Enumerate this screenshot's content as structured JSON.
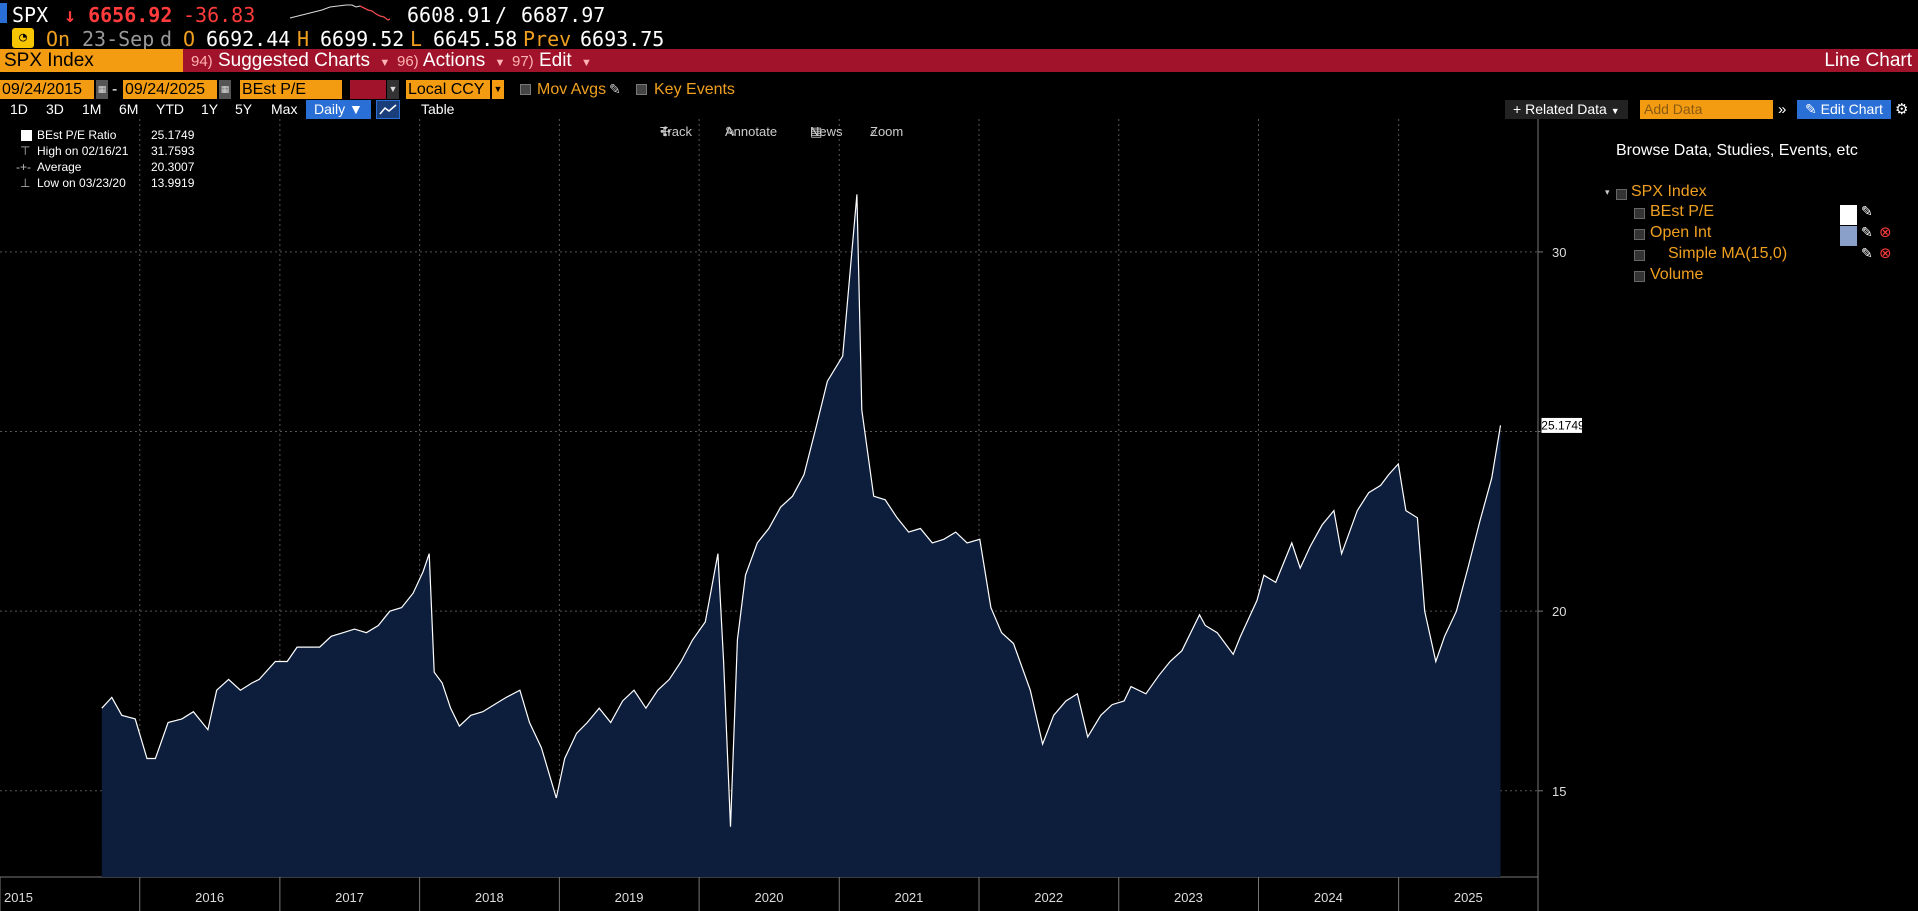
{
  "quote": {
    "ticker": "SPX",
    "arrow": "↓",
    "last": "6656.92",
    "change": "-36.83",
    "bid": "6608.91",
    "sep": "/",
    "ask": "6687.97"
  },
  "ohlc": {
    "on_label": "On",
    "date": "23-Sep",
    "d_label": "d",
    "open_label": "O",
    "open": "6692.44",
    "high_label": "H",
    "high": "6699.52",
    "low_label": "L",
    "low": "6645.58",
    "prev_label": "Prev",
    "prev": "6693.75"
  },
  "menubar": {
    "security": "SPX Index",
    "suggested_num": "94)",
    "suggested_label": "Suggested Charts",
    "actions_num": "96)",
    "actions_label": "Actions",
    "edit_num": "97)",
    "edit_label": "Edit",
    "chart_title": "Line Chart"
  },
  "settings": {
    "start_date": "09/24/2015",
    "dash": "-",
    "end_date": "09/24/2025",
    "field": "BEst P/E",
    "currency": "Local CCY",
    "mov_avgs": "Mov Avgs",
    "key_events": "Key Events"
  },
  "periods": {
    "buttons": [
      "1D",
      "3D",
      "1M",
      "6M",
      "YTD",
      "1Y",
      "5Y",
      "Max"
    ],
    "frequency": "Daily",
    "table_label": "Table",
    "related_label": "Related Data",
    "add_data_placeholder": "Add Data",
    "edit_chart_label": "Edit Chart"
  },
  "toolbar": {
    "track": "Track",
    "annotate": "Annotate",
    "news": "News",
    "zoom": "Zoom"
  },
  "legend": {
    "series_name": "BEst P/E Ratio",
    "series_value": "25.1749",
    "high_label": "High on 02/16/21",
    "high_value": "31.7593",
    "avg_label": "Average",
    "avg_value": "20.3007",
    "low_label": "Low on 03/23/20",
    "low_value": "13.9919"
  },
  "right_panel": {
    "title": "Browse Data, Studies, Events, etc",
    "security": "SPX Index",
    "items": [
      {
        "label": "BEst P/E",
        "checked": true
      },
      {
        "label": "Open Int",
        "checked": false
      },
      {
        "label": "Simple MA(15,0)",
        "checked": false
      },
      {
        "label": "Volume",
        "checked": false
      }
    ],
    "swatch_colors": [
      "#ffffff",
      "#8aa0c8"
    ]
  },
  "colors": {
    "line": "#ffffff",
    "fill": "#0d1e3d",
    "accent": "#f39c12",
    "menubar": "#a1132a",
    "negative": "#ff3b3b",
    "grid": "#555555"
  },
  "chart_data": {
    "type": "area",
    "title": "",
    "xlabel": "",
    "ylabel": "",
    "ylim": [
      12.6,
      33.7
    ],
    "xlim": [
      "2015-01-01",
      "2025-12-31"
    ],
    "yticks": [
      15,
      20,
      25,
      30
    ],
    "ytick_labels": [
      "15",
      "20",
      "",
      "30"
    ],
    "xtick_labels": [
      "2015",
      "2016",
      "2017",
      "2018",
      "2019",
      "2020",
      "2021",
      "2022",
      "2023",
      "2024",
      "2025"
    ],
    "last_value_label": "25.1749",
    "grid": true,
    "series": [
      {
        "name": "BEst P/E Ratio",
        "x": [
          "2015-09-24",
          "2015-10-20",
          "2015-11-15",
          "2015-12-20",
          "2016-01-20",
          "2016-02-11",
          "2016-03-15",
          "2016-04-20",
          "2016-05-20",
          "2016-06-27",
          "2016-07-20",
          "2016-08-20",
          "2016-09-20",
          "2016-10-20",
          "2016-11-08",
          "2016-12-20",
          "2017-01-20",
          "2017-02-15",
          "2017-03-15",
          "2017-04-15",
          "2017-05-15",
          "2017-06-15",
          "2017-07-15",
          "2017-08-15",
          "2017-09-15",
          "2017-10-15",
          "2017-11-15",
          "2017-12-15",
          "2018-01-10",
          "2018-01-26",
          "2018-02-08",
          "2018-03-01",
          "2018-03-23",
          "2018-04-15",
          "2018-05-15",
          "2018-06-15",
          "2018-07-15",
          "2018-08-15",
          "2018-09-20",
          "2018-10-15",
          "2018-11-15",
          "2018-12-24",
          "2019-01-15",
          "2019-02-15",
          "2019-03-15",
          "2019-04-15",
          "2019-05-15",
          "2019-06-15",
          "2019-07-15",
          "2019-08-15",
          "2019-09-15",
          "2019-10-15",
          "2019-11-15",
          "2019-12-15",
          "2020-01-17",
          "2020-02-19",
          "2020-03-05",
          "2020-03-23",
          "2020-04-10",
          "2020-05-01",
          "2020-06-01",
          "2020-07-01",
          "2020-08-01",
          "2020-09-01",
          "2020-10-01",
          "2020-11-01",
          "2020-12-01",
          "2021-01-10",
          "2021-02-16",
          "2021-03-01",
          "2021-04-01",
          "2021-05-01",
          "2021-06-01",
          "2021-07-01",
          "2021-08-01",
          "2021-09-01",
          "2021-10-01",
          "2021-11-01",
          "2021-12-01",
          "2022-01-03",
          "2022-02-01",
          "2022-03-01",
          "2022-04-01",
          "2022-05-15",
          "2022-06-16",
          "2022-07-15",
          "2022-08-16",
          "2022-09-15",
          "2022-10-12",
          "2022-11-15",
          "2022-12-15",
          "2023-01-15",
          "2023-02-02",
          "2023-03-13",
          "2023-04-15",
          "2023-05-15",
          "2023-06-15",
          "2023-07-31",
          "2023-08-15",
          "2023-09-15",
          "2023-10-27",
          "2023-11-15",
          "2023-12-28",
          "2024-01-15",
          "2024-02-15",
          "2024-03-28",
          "2024-04-19",
          "2024-05-15",
          "2024-06-15",
          "2024-07-16",
          "2024-08-05",
          "2024-09-15",
          "2024-10-15",
          "2024-11-15",
          "2024-12-06",
          "2024-12-31",
          "2025-01-20",
          "2025-02-19",
          "2025-03-10",
          "2025-04-08",
          "2025-05-01",
          "2025-06-01",
          "2025-07-01",
          "2025-08-01",
          "2025-09-01",
          "2025-09-24"
        ],
        "values": [
          17.3,
          17.6,
          17.1,
          17.0,
          15.9,
          15.9,
          16.9,
          17.0,
          17.2,
          16.7,
          17.8,
          18.1,
          17.8,
          18.0,
          18.1,
          18.6,
          18.6,
          19.0,
          19.0,
          19.0,
          19.3,
          19.4,
          19.5,
          19.4,
          19.6,
          20.0,
          20.1,
          20.5,
          21.1,
          21.6,
          18.3,
          18.0,
          17.3,
          16.8,
          17.1,
          17.2,
          17.4,
          17.6,
          17.8,
          16.9,
          16.2,
          14.8,
          15.9,
          16.6,
          16.9,
          17.3,
          16.9,
          17.5,
          17.8,
          17.3,
          17.8,
          18.1,
          18.6,
          19.2,
          19.7,
          21.6,
          18.6,
          14.0,
          19.2,
          21.0,
          21.9,
          22.3,
          22.9,
          23.2,
          23.8,
          25.1,
          26.4,
          27.1,
          31.6,
          25.6,
          23.2,
          23.1,
          22.6,
          22.2,
          22.3,
          21.9,
          22.0,
          22.2,
          21.9,
          22.0,
          20.1,
          19.4,
          19.1,
          17.8,
          16.3,
          17.1,
          17.5,
          17.7,
          16.5,
          17.1,
          17.4,
          17.5,
          17.9,
          17.7,
          18.2,
          18.6,
          18.9,
          19.9,
          19.6,
          19.4,
          18.8,
          19.3,
          20.3,
          21.0,
          20.8,
          21.9,
          21.2,
          21.8,
          22.4,
          22.8,
          21.6,
          22.8,
          23.3,
          23.5,
          23.8,
          24.1,
          22.8,
          22.6,
          20.0,
          18.6,
          19.3,
          20.0,
          21.2,
          22.5,
          23.7,
          25.17
        ]
      }
    ]
  }
}
